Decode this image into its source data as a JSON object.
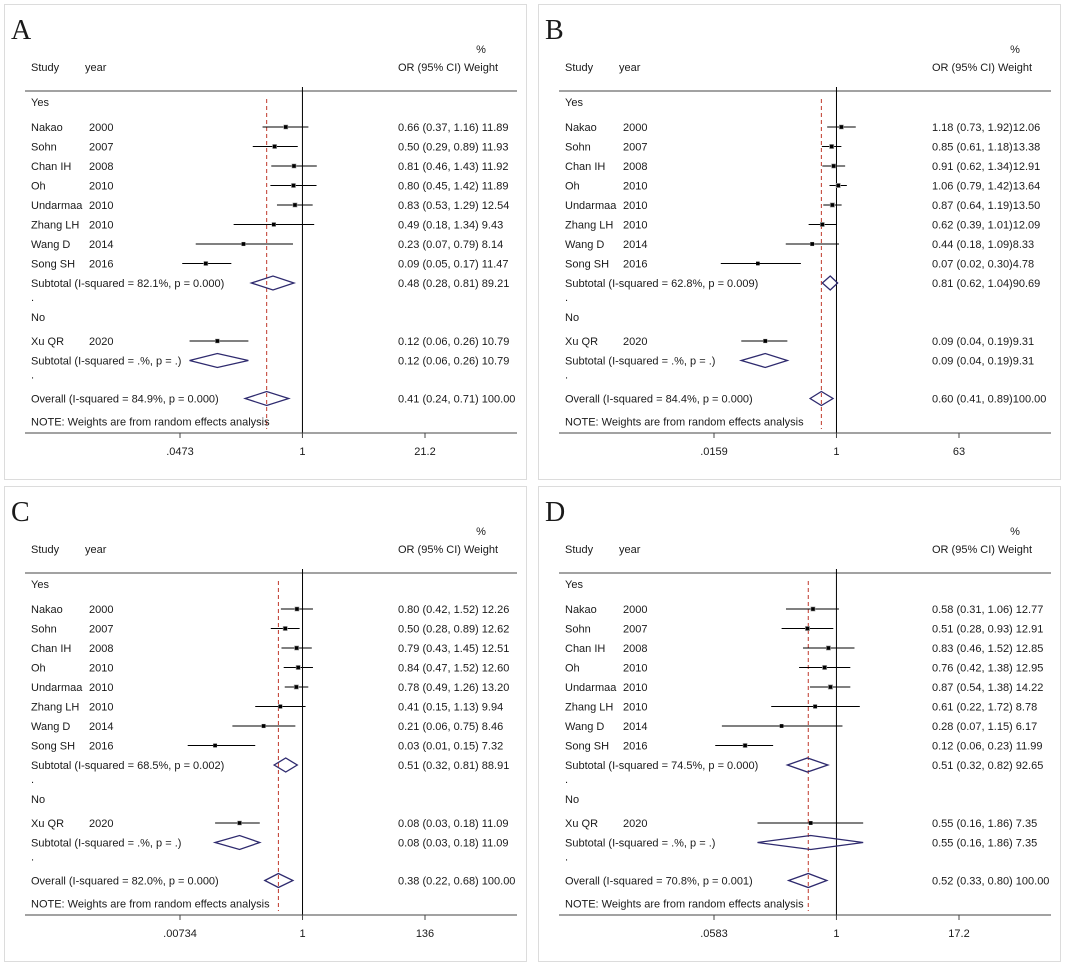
{
  "headers": {
    "study": "Study",
    "year": "year",
    "or": "OR (95% CI)",
    "pct": "%",
    "weight": "Weight",
    "yes": "Yes",
    "no": "No",
    "dot": ".",
    "note": "NOTE: Weights are from random effects analysis"
  },
  "colors": {
    "diamond": "#2e2a6e",
    "ref_line": "#c0392b",
    "axis": "#000000"
  },
  "chart_data": [
    {
      "type": "forest",
      "panel": "A",
      "axis": {
        "scale": "log",
        "ticks": [
          0.0473,
          1,
          21.2
        ],
        "tick_labels": [
          ".0473",
          "1",
          "21.2"
        ]
      },
      "yes_rows": [
        {
          "study": "Nakao",
          "year": "2000",
          "or": 0.66,
          "lo": 0.37,
          "hi": 1.16,
          "weight": 11.89,
          "text": "0.66 (0.37, 1.16) 11.89"
        },
        {
          "study": "Sohn",
          "year": "2007",
          "or": 0.5,
          "lo": 0.29,
          "hi": 0.89,
          "weight": 11.93,
          "text": "0.50 (0.29, 0.89) 11.93"
        },
        {
          "study": "Chan IH",
          "year": "2008",
          "or": 0.81,
          "lo": 0.46,
          "hi": 1.43,
          "weight": 11.92,
          "text": "0.81 (0.46, 1.43) 11.92"
        },
        {
          "study": "Oh",
          "year": "2010",
          "or": 0.8,
          "lo": 0.45,
          "hi": 1.42,
          "weight": 11.89,
          "text": "0.80 (0.45, 1.42) 11.89"
        },
        {
          "study": "Undarmaa",
          "year": "2010",
          "or": 0.83,
          "lo": 0.53,
          "hi": 1.29,
          "weight": 12.54,
          "text": "0.83 (0.53, 1.29) 12.54"
        },
        {
          "study": "Zhang LH",
          "year": "2010",
          "or": 0.49,
          "lo": 0.18,
          "hi": 1.34,
          "weight": 9.43,
          "text": "0.49 (0.18, 1.34) 9.43"
        },
        {
          "study": "Wang D",
          "year": "2014",
          "or": 0.23,
          "lo": 0.07,
          "hi": 0.79,
          "weight": 8.14,
          "text": "0.23 (0.07, 0.79) 8.14"
        },
        {
          "study": "Song SH",
          "year": "2016",
          "or": 0.09,
          "lo": 0.05,
          "hi": 0.17,
          "weight": 11.47,
          "text": "0.09 (0.05, 0.17) 11.47"
        }
      ],
      "yes_subtotal": {
        "label": "Subtotal  (I-squared = 82.1%, p = 0.000)",
        "or": 0.48,
        "lo": 0.28,
        "hi": 0.81,
        "text": "0.48 (0.28, 0.81) 89.21"
      },
      "no_rows": [
        {
          "study": "Xu QR",
          "year": "2020",
          "or": 0.12,
          "lo": 0.06,
          "hi": 0.26,
          "weight": 10.79,
          "text": "0.12 (0.06, 0.26) 10.79"
        }
      ],
      "no_subtotal": {
        "label": "Subtotal  (I-squared = .%, p = .)",
        "or": 0.12,
        "lo": 0.06,
        "hi": 0.26,
        "text": "0.12 (0.06, 0.26) 10.79"
      },
      "overall": {
        "label": "Overall  (I-squared = 84.9%, p = 0.000)",
        "or": 0.41,
        "lo": 0.24,
        "hi": 0.71,
        "text": "0.41 (0.24, 0.71) 100.00"
      }
    },
    {
      "type": "forest",
      "panel": "B",
      "axis": {
        "scale": "log",
        "ticks": [
          0.0159,
          1,
          63
        ],
        "tick_labels": [
          ".0159",
          "1",
          "63"
        ]
      },
      "yes_rows": [
        {
          "study": "Nakao",
          "year": "2000",
          "or": 1.18,
          "lo": 0.73,
          "hi": 1.92,
          "weight": 12.06,
          "text": "1.18 (0.73, 1.92)12.06"
        },
        {
          "study": "Sohn",
          "year": "2007",
          "or": 0.85,
          "lo": 0.61,
          "hi": 1.18,
          "weight": 13.38,
          "text": "0.85 (0.61, 1.18)13.38"
        },
        {
          "study": "Chan IH",
          "year": "2008",
          "or": 0.91,
          "lo": 0.62,
          "hi": 1.34,
          "weight": 12.91,
          "text": "0.91 (0.62, 1.34)12.91"
        },
        {
          "study": "Oh",
          "year": "2010",
          "or": 1.06,
          "lo": 0.79,
          "hi": 1.42,
          "weight": 13.64,
          "text": "1.06 (0.79, 1.42)13.64"
        },
        {
          "study": "Undarmaa",
          "year": "2010",
          "or": 0.87,
          "lo": 0.64,
          "hi": 1.19,
          "weight": 13.5,
          "text": "0.87 (0.64, 1.19)13.50"
        },
        {
          "study": "Zhang LH",
          "year": "2010",
          "or": 0.62,
          "lo": 0.39,
          "hi": 1.01,
          "weight": 12.09,
          "text": "0.62 (0.39, 1.01)12.09"
        },
        {
          "study": "Wang D",
          "year": "2014",
          "or": 0.44,
          "lo": 0.18,
          "hi": 1.09,
          "weight": 8.33,
          "text": "0.44 (0.18, 1.09)8.33"
        },
        {
          "study": "Song SH",
          "year": "2016",
          "or": 0.07,
          "lo": 0.02,
          "hi": 0.3,
          "weight": 4.78,
          "text": "0.07 (0.02, 0.30)4.78"
        }
      ],
      "yes_subtotal": {
        "label": "Subtotal  (I-squared = 62.8%, p = 0.009)",
        "or": 0.81,
        "lo": 0.62,
        "hi": 1.04,
        "text": "0.81 (0.62, 1.04)90.69"
      },
      "no_rows": [
        {
          "study": "Xu QR",
          "year": "2020",
          "or": 0.09,
          "lo": 0.04,
          "hi": 0.19,
          "weight": 9.31,
          "text": "0.09 (0.04, 0.19)9.31"
        }
      ],
      "no_subtotal": {
        "label": "Subtotal  (I-squared = .%, p = .)",
        "or": 0.09,
        "lo": 0.04,
        "hi": 0.19,
        "text": "0.09 (0.04, 0.19)9.31"
      },
      "overall": {
        "label": "Overall  (I-squared = 84.4%, p = 0.000)",
        "or": 0.6,
        "lo": 0.41,
        "hi": 0.89,
        "text": "0.60 (0.41, 0.89)100.00"
      }
    },
    {
      "type": "forest",
      "panel": "C",
      "axis": {
        "scale": "log",
        "ticks": [
          0.00734,
          1,
          136
        ],
        "tick_labels": [
          ".00734",
          "1",
          "136"
        ]
      },
      "yes_rows": [
        {
          "study": "Nakao",
          "year": "2000",
          "or": 0.8,
          "lo": 0.42,
          "hi": 1.52,
          "weight": 12.26,
          "text": "0.80 (0.42, 1.52) 12.26"
        },
        {
          "study": "Sohn",
          "year": "2007",
          "or": 0.5,
          "lo": 0.28,
          "hi": 0.89,
          "weight": 12.62,
          "text": "0.50 (0.28, 0.89) 12.62"
        },
        {
          "study": "Chan IH",
          "year": "2008",
          "or": 0.79,
          "lo": 0.43,
          "hi": 1.45,
          "weight": 12.51,
          "text": "0.79 (0.43, 1.45) 12.51"
        },
        {
          "study": "Oh",
          "year": "2010",
          "or": 0.84,
          "lo": 0.47,
          "hi": 1.52,
          "weight": 12.6,
          "text": "0.84 (0.47, 1.52) 12.60"
        },
        {
          "study": "Undarmaa",
          "year": "2010",
          "or": 0.78,
          "lo": 0.49,
          "hi": 1.26,
          "weight": 13.2,
          "text": "0.78 (0.49, 1.26) 13.20"
        },
        {
          "study": "Zhang LH",
          "year": "2010",
          "or": 0.41,
          "lo": 0.15,
          "hi": 1.13,
          "weight": 9.94,
          "text": "0.41 (0.15, 1.13) 9.94"
        },
        {
          "study": "Wang D",
          "year": "2014",
          "or": 0.21,
          "lo": 0.06,
          "hi": 0.75,
          "weight": 8.46,
          "text": "0.21 (0.06, 0.75) 8.46"
        },
        {
          "study": "Song SH",
          "year": "2016",
          "or": 0.03,
          "lo": 0.01,
          "hi": 0.15,
          "weight": 7.32,
          "text": "0.03 (0.01, 0.15) 7.32"
        }
      ],
      "yes_subtotal": {
        "label": "Subtotal  (I-squared = 68.5%, p = 0.002)",
        "or": 0.51,
        "lo": 0.32,
        "hi": 0.81,
        "text": "0.51 (0.32, 0.81) 88.91"
      },
      "no_rows": [
        {
          "study": "Xu QR",
          "year": "2020",
          "or": 0.08,
          "lo": 0.03,
          "hi": 0.18,
          "weight": 11.09,
          "text": "0.08 (0.03, 0.18) 11.09"
        }
      ],
      "no_subtotal": {
        "label": "Subtotal  (I-squared = .%, p = .)",
        "or": 0.08,
        "lo": 0.03,
        "hi": 0.18,
        "text": "0.08 (0.03, 0.18) 11.09"
      },
      "overall": {
        "label": "Overall  (I-squared = 82.0%, p = 0.000)",
        "or": 0.38,
        "lo": 0.22,
        "hi": 0.68,
        "text": "0.38 (0.22, 0.68) 100.00"
      }
    },
    {
      "type": "forest",
      "panel": "D",
      "axis": {
        "scale": "log",
        "ticks": [
          0.0583,
          1,
          17.2
        ],
        "tick_labels": [
          ".0583",
          "1",
          "17.2"
        ]
      },
      "yes_rows": [
        {
          "study": "Nakao",
          "year": "2000",
          "or": 0.58,
          "lo": 0.31,
          "hi": 1.06,
          "weight": 12.77,
          "text": "0.58 (0.31, 1.06)  12.77"
        },
        {
          "study": "Sohn",
          "year": "2007",
          "or": 0.51,
          "lo": 0.28,
          "hi": 0.93,
          "weight": 12.91,
          "text": "0.51 (0.28, 0.93)  12.91"
        },
        {
          "study": "Chan IH",
          "year": "2008",
          "or": 0.83,
          "lo": 0.46,
          "hi": 1.52,
          "weight": 12.85,
          "text": "0.83 (0.46, 1.52)  12.85"
        },
        {
          "study": "Oh",
          "year": "2010",
          "or": 0.76,
          "lo": 0.42,
          "hi": 1.38,
          "weight": 12.95,
          "text": "0.76 (0.42, 1.38)  12.95"
        },
        {
          "study": "Undarmaa",
          "year": "2010",
          "or": 0.87,
          "lo": 0.54,
          "hi": 1.38,
          "weight": 14.22,
          "text": "0.87 (0.54, 1.38)  14.22"
        },
        {
          "study": "Zhang LH",
          "year": "2010",
          "or": 0.61,
          "lo": 0.22,
          "hi": 1.72,
          "weight": 8.78,
          "text": "0.61 (0.22, 1.72)  8.78"
        },
        {
          "study": "Wang D",
          "year": "2014",
          "or": 0.28,
          "lo": 0.07,
          "hi": 1.15,
          "weight": 6.17,
          "text": "0.28 (0.07, 1.15)  6.17"
        },
        {
          "study": "Song SH",
          "year": "2016",
          "or": 0.12,
          "lo": 0.06,
          "hi": 0.23,
          "weight": 11.99,
          "text": "0.12 (0.06, 0.23)  11.99"
        }
      ],
      "yes_subtotal": {
        "label": "Subtotal  (I-squared = 74.5%, p = 0.000)",
        "or": 0.51,
        "lo": 0.32,
        "hi": 0.82,
        "text": "0.51 (0.32, 0.82)  92.65"
      },
      "no_rows": [
        {
          "study": "Xu QR",
          "year": "2020",
          "or": 0.55,
          "lo": 0.16,
          "hi": 1.86,
          "weight": 7.35,
          "text": "0.55 (0.16, 1.86)  7.35"
        }
      ],
      "no_subtotal": {
        "label": "Subtotal  (I-squared = .%, p = .)",
        "or": 0.55,
        "lo": 0.16,
        "hi": 1.86,
        "text": "0.55 (0.16, 1.86)  7.35"
      },
      "overall": {
        "label": "Overall  (I-squared = 70.8%, p = 0.001)",
        "or": 0.52,
        "lo": 0.33,
        "hi": 0.8,
        "text": "0.52 (0.33, 0.80)  100.00"
      }
    }
  ]
}
